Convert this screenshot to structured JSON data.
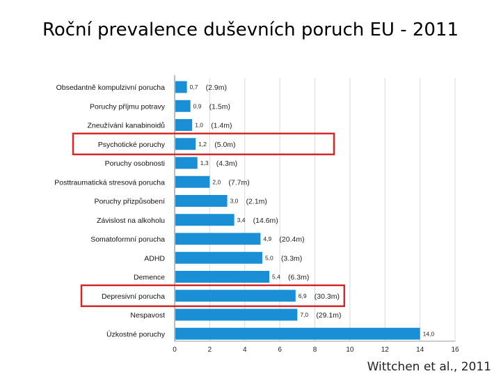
{
  "title": "Roční prevalence duševních poruch EU - 2011",
  "source": "Wittchen et al., 2011",
  "colors": {
    "bar": "#1a8fd6",
    "highlight": "#d62828",
    "grid": "#d9d9d9"
  },
  "chart_data": {
    "type": "bar",
    "orientation": "horizontal",
    "categories": [
      "Obsedantně kompulzivní porucha",
      "Poruchy příjmu potravy",
      "Zneužívání kanabinoidů",
      "Psychotické poruchy",
      "Poruchy osobnosti",
      "Posttraumatická stresová porucha",
      "Poruchy přizpůsobení",
      "Závislost na alkoholu",
      "Somatoformní porucha",
      "ADHD",
      "Demence",
      "Depresivní porucha",
      "Nespavost",
      "Úzkostné poruchy"
    ],
    "values": [
      0.7,
      0.9,
      1.0,
      1.2,
      1.3,
      2.0,
      3.0,
      3.4,
      4.9,
      5.0,
      5.4,
      6.9,
      7.0,
      14.0
    ],
    "value_labels": [
      "0,7",
      "0,9",
      "1,0",
      "1,2",
      "1,3",
      "2,0",
      "3,0",
      "3,4",
      "4,9",
      "5,0",
      "5,4",
      "6,9",
      "7,0",
      "14,0"
    ],
    "counts": [
      "(2.9m)",
      "(1.5m)",
      "(1.4m)",
      "(5.0m)",
      "(4.3m)",
      "(7.7m)",
      "(2.1m)",
      "(14.6m)",
      "(20.4m)",
      "(3.3m)",
      "(6.3m)",
      "(30.3m)",
      "(29.1m)",
      ""
    ],
    "highlighted": [
      "Psychotické poruchy",
      "Depresivní porucha"
    ],
    "xlim": [
      0,
      16
    ],
    "xticks": [
      0,
      2,
      4,
      6,
      8,
      10,
      12,
      14,
      16
    ],
    "grid": true
  }
}
